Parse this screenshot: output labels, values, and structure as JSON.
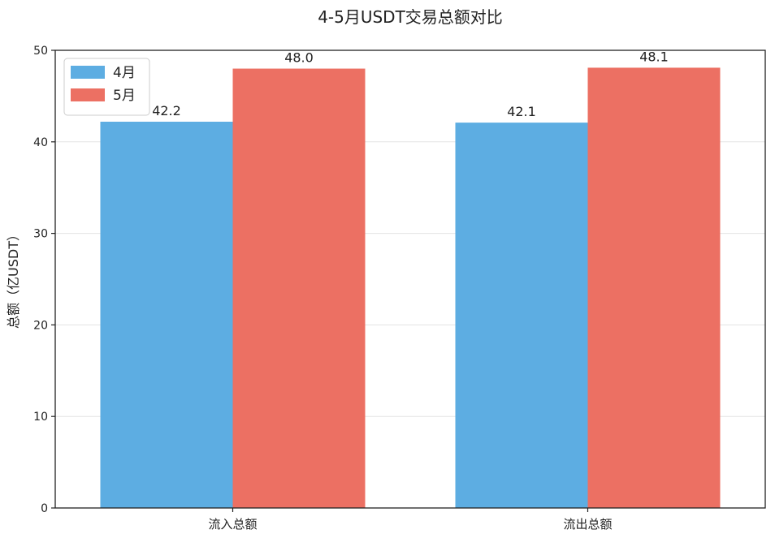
{
  "chart_data": {
    "type": "bar",
    "title": "4-5月USDT交易总额对比",
    "xlabel": "",
    "ylabel": "总额（亿USDT）",
    "categories": [
      "流入总额",
      "流出总额"
    ],
    "series": [
      {
        "name": "4月",
        "values": [
          42.2,
          42.1
        ],
        "color": "#5DADE2",
        "labels": [
          "42.2",
          "42.1"
        ]
      },
      {
        "name": "5月",
        "values": [
          48.0,
          48.1
        ],
        "color": "#EC7063",
        "labels": [
          "48.0",
          "48.1"
        ]
      }
    ],
    "ylim": [
      0,
      50
    ],
    "yticks": [
      0,
      10,
      20,
      30,
      40,
      50
    ],
    "grid": true,
    "legend_position": "top-left"
  }
}
